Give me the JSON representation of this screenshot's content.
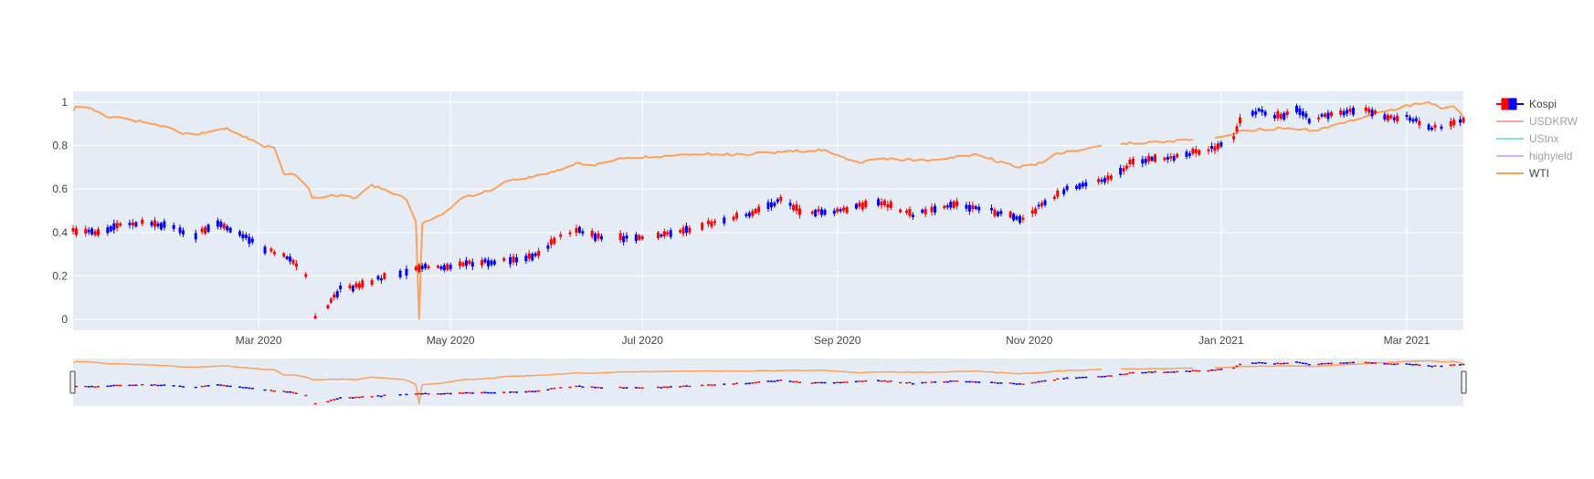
{
  "chart_data": {
    "type": "candlestick",
    "title": "",
    "xlabel": "",
    "ylabel": "",
    "x_range": [
      "2020-01-02",
      "2021-03-19"
    ],
    "ylim": [
      -0.05,
      1.05
    ],
    "x_ticks": [
      "Mar 2020",
      "May 2020",
      "Jul 2020",
      "Sep 2020",
      "Nov 2020",
      "Jan 2021",
      "Mar 2021"
    ],
    "x_tick_dates": [
      "2020-03-01",
      "2020-05-01",
      "2020-07-01",
      "2020-09-01",
      "2020-11-01",
      "2021-01-01",
      "2021-03-01"
    ],
    "y_ticks": [
      "0",
      "0.2",
      "0.4",
      "0.6",
      "0.8",
      "1"
    ],
    "y_tick_values": [
      0,
      0.2,
      0.4,
      0.6,
      0.8,
      1
    ],
    "grid": true,
    "legend_position": "right",
    "rangeslider": true,
    "colors": {
      "plot_bg": "#e5ecf6",
      "grid": "#ffffff",
      "increasing": "#ff0000",
      "decreasing": "#0000ff",
      "usdkrw": "#ef553b",
      "ustnx": "#00cc96",
      "highyield": "#ab63fa",
      "wti": "#ffa15a",
      "tick_text": "#444444"
    },
    "legend": [
      {
        "name": "Kospi",
        "visible": true
      },
      {
        "name": "USDKRW",
        "visible": false
      },
      {
        "name": "UStnx",
        "visible": false
      },
      {
        "name": "highyield",
        "visible": false
      },
      {
        "name": "WTI",
        "visible": true
      }
    ],
    "kospi_points": [
      [
        "2020-01-02",
        0.41
      ],
      [
        "2020-01-10",
        0.4
      ],
      [
        "2020-01-17",
        0.43
      ],
      [
        "2020-01-24",
        0.45
      ],
      [
        "2020-02-01",
        0.43
      ],
      [
        "2020-02-10",
        0.39
      ],
      [
        "2020-02-17",
        0.44
      ],
      [
        "2020-02-24",
        0.4
      ],
      [
        "2020-03-02",
        0.33
      ],
      [
        "2020-03-09",
        0.3
      ],
      [
        "2020-03-16",
        0.2
      ],
      [
        "2020-03-19",
        0.01
      ],
      [
        "2020-03-23",
        0.06
      ],
      [
        "2020-03-27",
        0.14
      ],
      [
        "2020-04-01",
        0.15
      ],
      [
        "2020-04-09",
        0.19
      ],
      [
        "2020-04-16",
        0.22
      ],
      [
        "2020-04-23",
        0.24
      ],
      [
        "2020-04-29",
        0.24
      ],
      [
        "2020-05-08",
        0.26
      ],
      [
        "2020-05-20",
        0.27
      ],
      [
        "2020-05-29",
        0.3
      ],
      [
        "2020-06-05",
        0.39
      ],
      [
        "2020-06-11",
        0.41
      ],
      [
        "2020-06-19",
        0.37
      ],
      [
        "2020-07-01",
        0.38
      ],
      [
        "2020-07-15",
        0.41
      ],
      [
        "2020-07-27",
        0.46
      ],
      [
        "2020-08-07",
        0.5
      ],
      [
        "2020-08-14",
        0.55
      ],
      [
        "2020-08-21",
        0.49
      ],
      [
        "2020-08-31",
        0.5
      ],
      [
        "2020-09-15",
        0.54
      ],
      [
        "2020-09-25",
        0.48
      ],
      [
        "2020-10-08",
        0.53
      ],
      [
        "2020-10-20",
        0.5
      ],
      [
        "2020-10-30",
        0.46
      ],
      [
        "2020-11-06",
        0.54
      ],
      [
        "2020-11-13",
        0.6
      ],
      [
        "2020-11-20",
        0.63
      ],
      [
        "2020-11-27",
        0.65
      ],
      [
        "2020-12-04",
        0.73
      ],
      [
        "2020-12-11",
        0.74
      ],
      [
        "2020-12-18",
        0.75
      ],
      [
        "2020-12-30",
        0.79
      ],
      [
        "2021-01-05",
        0.84
      ],
      [
        "2021-01-08",
        0.95
      ],
      [
        "2021-01-14",
        0.96
      ],
      [
        "2021-01-20",
        0.93
      ],
      [
        "2021-01-25",
        0.97
      ],
      [
        "2021-01-29",
        0.92
      ],
      [
        "2021-02-05",
        0.94
      ],
      [
        "2021-02-15",
        0.97
      ],
      [
        "2021-02-22",
        0.93
      ],
      [
        "2021-03-02",
        0.93
      ],
      [
        "2021-03-09",
        0.88
      ],
      [
        "2021-03-19",
        0.91
      ]
    ],
    "wti_points": [
      [
        "2020-01-02",
        0.96
      ],
      [
        "2020-01-03",
        0.98
      ],
      [
        "2020-01-08",
        0.97
      ],
      [
        "2020-01-13",
        0.93
      ],
      [
        "2020-01-20",
        0.92
      ],
      [
        "2020-01-31",
        0.89
      ],
      [
        "2020-02-05",
        0.86
      ],
      [
        "2020-02-10",
        0.85
      ],
      [
        "2020-02-20",
        0.88
      ],
      [
        "2020-02-26",
        0.84
      ],
      [
        "2020-03-02",
        0.8
      ],
      [
        "2020-03-06",
        0.79
      ],
      [
        "2020-03-09",
        0.67
      ],
      [
        "2020-03-13",
        0.66
      ],
      [
        "2020-03-17",
        0.6
      ],
      [
        "2020-03-18",
        0.56
      ],
      [
        "2020-03-25",
        0.57
      ],
      [
        "2020-04-01",
        0.56
      ],
      [
        "2020-04-06",
        0.62
      ],
      [
        "2020-04-09",
        0.6
      ],
      [
        "2020-04-15",
        0.57
      ],
      [
        "2020-04-17",
        0.55
      ],
      [
        "2020-04-20",
        0.45
      ],
      [
        "2020-04-21",
        0.0
      ],
      [
        "2020-04-22",
        0.44
      ],
      [
        "2020-04-28",
        0.48
      ],
      [
        "2020-05-05",
        0.56
      ],
      [
        "2020-05-13",
        0.59
      ],
      [
        "2020-05-20",
        0.64
      ],
      [
        "2020-06-01",
        0.67
      ],
      [
        "2020-06-10",
        0.72
      ],
      [
        "2020-06-15",
        0.71
      ],
      [
        "2020-06-25",
        0.74
      ],
      [
        "2020-07-15",
        0.76
      ],
      [
        "2020-08-01",
        0.76
      ],
      [
        "2020-08-14",
        0.77
      ],
      [
        "2020-08-28",
        0.78
      ],
      [
        "2020-09-08",
        0.72
      ],
      [
        "2020-09-15",
        0.74
      ],
      [
        "2020-09-30",
        0.73
      ],
      [
        "2020-10-15",
        0.76
      ],
      [
        "2020-10-28",
        0.7
      ],
      [
        "2020-11-05",
        0.72
      ],
      [
        "2020-11-09",
        0.76
      ],
      [
        "2020-11-24",
        0.8
      ],
      [
        "2020-12-01",
        0.81
      ],
      [
        "2020-12-15",
        0.82
      ],
      [
        "2020-12-23",
        0.83
      ],
      [
        "2021-01-01",
        0.84
      ],
      [
        "2021-01-08",
        0.87
      ],
      [
        "2021-01-20",
        0.88
      ],
      [
        "2021-02-01",
        0.87
      ],
      [
        "2021-02-10",
        0.91
      ],
      [
        "2021-02-23",
        0.96
      ],
      [
        "2021-03-03",
        0.99
      ],
      [
        "2021-03-08",
        1.0
      ],
      [
        "2021-03-12",
        0.97
      ],
      [
        "2021-03-16",
        0.98
      ],
      [
        "2021-03-19",
        0.93
      ]
    ],
    "wti_gaps": [
      [
        "2020-11-24",
        "2020-11-30"
      ],
      [
        "2020-12-23",
        "2020-12-30"
      ]
    ]
  }
}
